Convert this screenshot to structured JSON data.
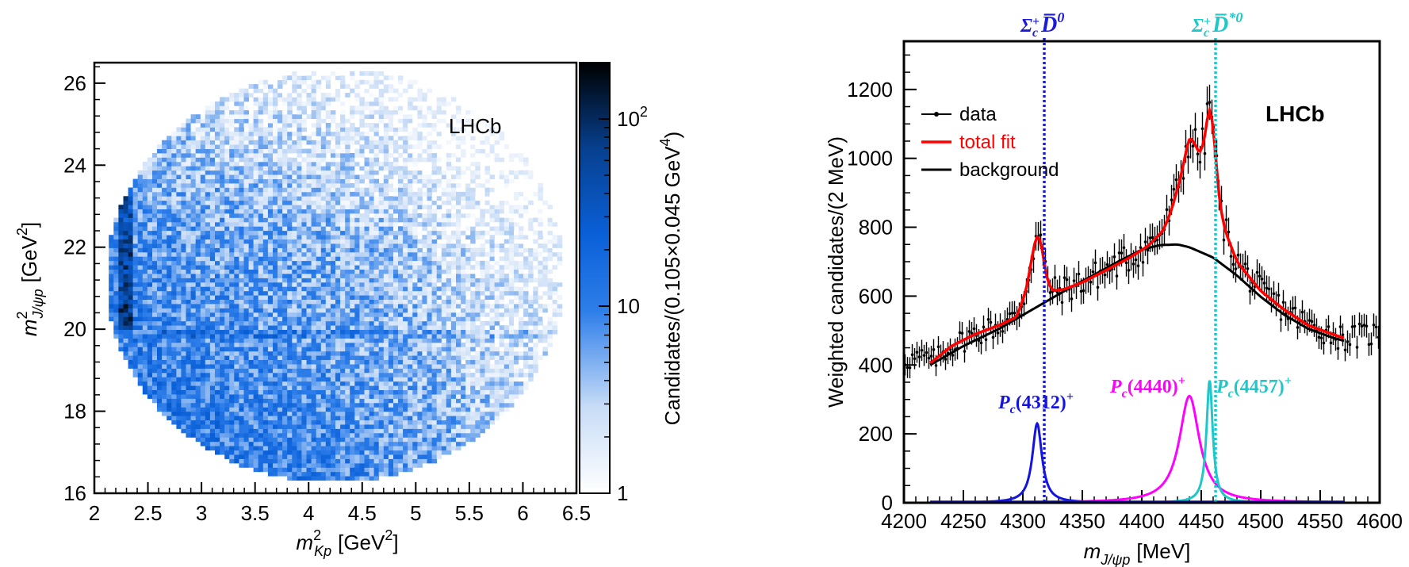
{
  "chart_data": [
    {
      "type": "heatmap",
      "title": "",
      "annotation": "LHCb",
      "xlabel": "m",
      "xlabel_sub": "Kp",
      "xlabel_sup": "2",
      "xlabel_unit": "[GeV",
      "xlabel_unit_sup": "2",
      "xlabel_unit_end": "]",
      "ylabel": "m",
      "ylabel_sub": "J/ψp",
      "ylabel_sup": "2",
      "ylabel_unit": "[GeV",
      "ylabel_unit_sup": "2",
      "ylabel_unit_end": "]",
      "xlim": [
        2,
        6.5
      ],
      "ylim": [
        16,
        26.5
      ],
      "xticks": [
        "2",
        "2.5",
        "3",
        "3.5",
        "4",
        "4.5",
        "5",
        "5.5",
        "6",
        "6.5"
      ],
      "yticks": [
        "16",
        "18",
        "20",
        "22",
        "24",
        "26"
      ],
      "colorbar": {
        "label": "Candidates/(0.105×0.045 GeV",
        "label_sup": "4",
        "label_end": ")",
        "scale": "log",
        "range": [
          1,
          200
        ],
        "ticks": [
          "1",
          "10",
          "10"
        ],
        "tick_sup": "2",
        "colors": [
          "#ffffff",
          "#c8dcf6",
          "#2f7fea",
          "#0a60d8",
          "#07408f",
          "#000000"
        ]
      },
      "features": {
        "vertical_band_x": 2.3,
        "horizontal_band_y": 19.85
      }
    },
    {
      "type": "line",
      "title": "",
      "annotation": "LHCb",
      "xlabel": "m",
      "xlabel_sub": "J/ψp",
      "xlabel_unit": "[MeV]",
      "ylabel": "Weighted candidates/(2 MeV)",
      "xlim": [
        4200,
        4600
      ],
      "ylim": [
        0,
        1340
      ],
      "xticks": [
        "4200",
        "4250",
        "4300",
        "4350",
        "4400",
        "4450",
        "4500",
        "4550",
        "4600"
      ],
      "yticks": [
        "0",
        "200",
        "400",
        "600",
        "800",
        "1000",
        "1200"
      ],
      "legend": {
        "position": "top-left",
        "entries": [
          {
            "label": "data",
            "color": "#000000"
          },
          {
            "label": "total fit",
            "color": "#ff0000"
          },
          {
            "label": "background",
            "color": "#000000"
          }
        ]
      },
      "thresholds": [
        {
          "label": "Σ",
          "sub": "c",
          "sup": "+",
          "particle": "D̅",
          "particle_sup": "0",
          "x": 4318,
          "color": "#1a1ad8"
        },
        {
          "label": "Σ",
          "sub": "c",
          "sup": "+",
          "particle": "D̅",
          "particle_sup": "*0",
          "x": 4462,
          "color": "#1ec8c8"
        }
      ],
      "peaks": [
        {
          "label": "P",
          "sub": "c",
          "mass": "(4312)",
          "sup": "+",
          "x": 4312,
          "height": 230,
          "width": 9.8,
          "color": "#1414e0"
        },
        {
          "label": "P",
          "sub": "c",
          "mass": "(4440)",
          "sup": "+",
          "x": 4440,
          "height": 310,
          "width": 20.6,
          "color": "#ff00ff"
        },
        {
          "label": "P",
          "sub": "c",
          "mass": "(4457)",
          "sup": "+",
          "x": 4457,
          "height": 355,
          "width": 6.4,
          "color": "#1ec8c8"
        }
      ],
      "background_points": [
        [
          4222,
          400
        ],
        [
          4250,
          455
        ],
        [
          4280,
          505
        ],
        [
          4300,
          545
        ],
        [
          4320,
          585
        ],
        [
          4340,
          625
        ],
        [
          4360,
          662
        ],
        [
          4380,
          700
        ],
        [
          4400,
          735
        ],
        [
          4415,
          748
        ],
        [
          4430,
          750
        ],
        [
          4440,
          742
        ],
        [
          4460,
          712
        ],
        [
          4480,
          660
        ],
        [
          4500,
          598
        ],
        [
          4520,
          545
        ],
        [
          4540,
          505
        ],
        [
          4560,
          480
        ],
        [
          4570,
          470
        ]
      ],
      "total_fit_points": [
        [
          4222,
          405
        ],
        [
          4240,
          455
        ],
        [
          4260,
          490
        ],
        [
          4280,
          515
        ],
        [
          4295,
          540
        ],
        [
          4303,
          620
        ],
        [
          4308,
          720
        ],
        [
          4312,
          785
        ],
        [
          4316,
          745
        ],
        [
          4320,
          650
        ],
        [
          4325,
          615
        ],
        [
          4335,
          620
        ],
        [
          4350,
          640
        ],
        [
          4370,
          675
        ],
        [
          4390,
          712
        ],
        [
          4405,
          745
        ],
        [
          4418,
          790
        ],
        [
          4425,
          850
        ],
        [
          4433,
          950
        ],
        [
          4440,
          1065
        ],
        [
          4445,
          1040
        ],
        [
          4449,
          1010
        ],
        [
          4453,
          1060
        ],
        [
          4457,
          1165
        ],
        [
          4461,
          1060
        ],
        [
          4465,
          880
        ],
        [
          4470,
          790
        ],
        [
          4480,
          700
        ],
        [
          4500,
          615
        ],
        [
          4520,
          560
        ],
        [
          4540,
          515
        ],
        [
          4560,
          490
        ],
        [
          4570,
          478
        ]
      ]
    }
  ]
}
